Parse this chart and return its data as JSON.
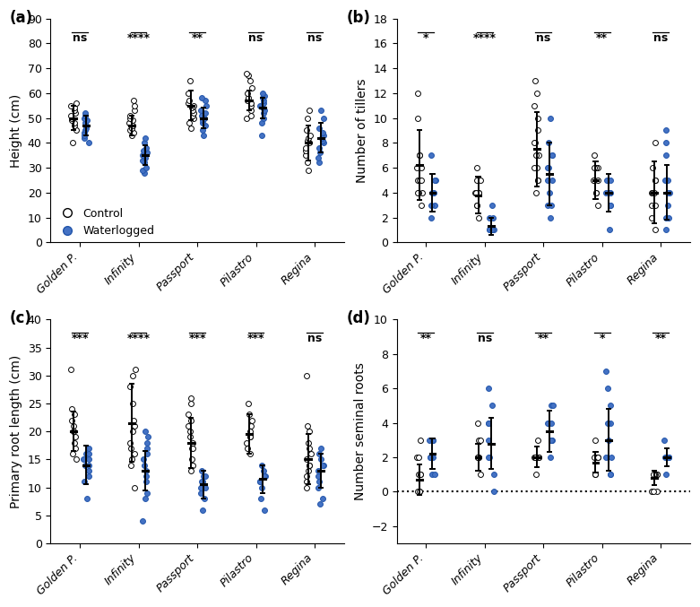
{
  "varieties": [
    "Golden P.",
    "Infinity",
    "Passport",
    "Pilastro",
    "Regina"
  ],
  "panel_labels": [
    "(a)",
    "(b)",
    "(c)",
    "(d)"
  ],
  "panel_a": {
    "ylabel": "Height (cm)",
    "ylim": [
      0,
      90
    ],
    "yticks": [
      0,
      10,
      20,
      30,
      40,
      50,
      60,
      70,
      80,
      90
    ],
    "sig": [
      "ns",
      "****",
      "**",
      "ns",
      "ns"
    ],
    "control_mean": [
      50,
      47,
      55,
      57,
      40
    ],
    "control_sd": [
      5,
      4,
      6,
      4,
      7
    ],
    "water_mean": [
      47,
      35,
      50,
      54,
      42
    ],
    "water_sd": [
      4,
      4,
      4,
      4,
      6
    ],
    "control_data": [
      [
        40,
        45,
        47,
        48,
        49,
        50,
        51,
        52,
        53,
        54,
        55,
        56
      ],
      [
        43,
        44,
        45,
        46,
        47,
        48,
        49,
        50,
        51,
        53,
        55,
        57
      ],
      [
        46,
        48,
        50,
        51,
        52,
        53,
        54,
        55,
        56,
        57,
        60,
        65
      ],
      [
        50,
        51,
        53,
        55,
        56,
        57,
        58,
        60,
        62,
        65,
        67,
        68
      ],
      [
        29,
        32,
        35,
        37,
        38,
        40,
        41,
        42,
        43,
        45,
        50,
        53
      ]
    ],
    "water_data": [
      [
        40,
        42,
        43,
        44,
        45,
        46,
        47,
        48,
        49,
        50,
        51,
        52
      ],
      [
        28,
        29,
        30,
        32,
        33,
        34,
        35,
        36,
        37,
        38,
        40,
        42
      ],
      [
        43,
        45,
        47,
        48,
        49,
        50,
        51,
        52,
        53,
        55,
        57,
        58
      ],
      [
        43,
        48,
        50,
        52,
        53,
        54,
        55,
        56,
        57,
        58,
        59,
        60
      ],
      [
        32,
        34,
        36,
        38,
        40,
        41,
        42,
        43,
        44,
        46,
        50,
        53
      ]
    ]
  },
  "panel_b": {
    "ylabel": "Number of tillers",
    "ylim": [
      0,
      18
    ],
    "yticks": [
      0,
      2,
      4,
      6,
      8,
      10,
      12,
      14,
      16,
      18
    ],
    "sig": [
      "*",
      "****",
      "ns",
      "**",
      "ns"
    ],
    "control_mean": [
      6.2,
      3.8,
      7.5,
      5.0,
      4.0
    ],
    "control_sd": [
      2.8,
      1.5,
      3.0,
      1.5,
      2.5
    ],
    "water_mean": [
      4.0,
      1.3,
      5.5,
      4.0,
      4.0
    ],
    "water_sd": [
      1.5,
      0.7,
      2.5,
      1.5,
      2.2
    ],
    "control_data": [
      [
        3,
        4,
        4,
        4,
        5,
        5,
        5,
        6,
        6,
        7,
        7,
        10,
        12
      ],
      [
        2,
        3,
        3,
        4,
        4,
        4,
        4,
        5,
        5,
        6
      ],
      [
        4,
        5,
        5,
        6,
        6,
        7,
        7,
        8,
        8,
        9,
        10,
        11,
        12,
        13
      ],
      [
        3,
        4,
        4,
        5,
        5,
        5,
        6,
        6,
        6,
        7
      ],
      [
        1,
        2,
        3,
        3,
        4,
        4,
        4,
        5,
        5,
        6,
        8
      ]
    ],
    "water_data": [
      [
        2,
        3,
        3,
        4,
        4,
        4,
        5,
        5,
        7
      ],
      [
        1,
        1,
        1,
        1,
        1,
        2,
        2,
        3
      ],
      [
        2,
        3,
        3,
        4,
        5,
        5,
        6,
        6,
        7,
        7,
        8,
        10
      ],
      [
        1,
        3,
        3,
        4,
        4,
        4,
        5,
        5
      ],
      [
        1,
        2,
        2,
        3,
        4,
        4,
        5,
        5,
        7,
        8,
        9
      ]
    ]
  },
  "panel_c": {
    "ylabel": "Primary root length (cm)",
    "ylim": [
      0,
      40
    ],
    "yticks": [
      0,
      5,
      10,
      15,
      20,
      25,
      30,
      35,
      40
    ],
    "sig": [
      "***",
      "****",
      "***",
      "***",
      "ns"
    ],
    "control_mean": [
      20.0,
      21.5,
      18.0,
      19.5,
      15.0
    ],
    "control_sd": [
      3.5,
      7.0,
      4.5,
      3.5,
      4.5
    ],
    "water_mean": [
      14.0,
      13.0,
      10.5,
      11.5,
      13.0
    ],
    "water_sd": [
      3.5,
      3.5,
      2.5,
      2.5,
      3.0
    ],
    "control_data": [
      [
        15,
        16,
        17,
        18,
        19,
        20,
        20,
        21,
        22,
        23,
        24,
        31
      ],
      [
        10,
        14,
        15,
        16,
        17,
        18,
        20,
        21,
        22,
        25,
        28,
        30,
        31
      ],
      [
        13,
        14,
        15,
        17,
        17,
        18,
        19,
        20,
        21,
        22,
        23,
        25,
        26
      ],
      [
        16,
        17,
        18,
        19,
        19,
        20,
        21,
        22,
        23,
        25
      ],
      [
        10,
        11,
        12,
        13,
        14,
        14,
        15,
        16,
        17,
        18,
        20,
        21,
        30
      ]
    ],
    "water_data": [
      [
        8,
        11,
        12,
        13,
        14,
        14,
        15,
        15,
        16,
        16,
        17
      ],
      [
        4,
        8,
        9,
        11,
        12,
        13,
        14,
        15,
        16,
        17,
        18,
        19,
        20
      ],
      [
        6,
        8,
        9,
        10,
        10,
        11,
        11,
        12,
        12,
        13
      ],
      [
        6,
        8,
        10,
        11,
        11,
        12,
        12,
        13,
        14
      ],
      [
        7,
        8,
        10,
        11,
        12,
        13,
        14,
        14,
        15,
        16,
        17
      ]
    ]
  },
  "panel_d": {
    "ylabel": "Number seminal roots",
    "ylim": [
      -3,
      10
    ],
    "yticks": [
      -2,
      0,
      2,
      4,
      6,
      8,
      10
    ],
    "sig": [
      "**",
      "ns",
      "**",
      "*",
      "**"
    ],
    "control_mean": [
      0.7,
      2.0,
      2.0,
      1.7,
      0.8
    ],
    "control_sd": [
      0.9,
      0.8,
      0.6,
      0.6,
      0.4
    ],
    "water_mean": [
      2.2,
      2.8,
      3.5,
      3.0,
      2.0
    ],
    "water_sd": [
      0.9,
      1.5,
      1.2,
      1.8,
      0.5
    ],
    "control_data": [
      [
        0,
        0,
        0,
        1,
        1,
        1,
        2,
        2,
        3
      ],
      [
        1,
        2,
        2,
        2,
        2,
        3,
        3,
        4
      ],
      [
        1,
        2,
        2,
        2,
        2,
        2,
        3
      ],
      [
        1,
        1,
        2,
        2,
        2,
        2,
        3
      ],
      [
        0,
        0,
        0,
        1,
        1,
        1,
        1,
        1,
        1
      ]
    ],
    "water_data": [
      [
        1,
        1,
        2,
        2,
        2,
        3,
        3,
        3
      ],
      [
        0,
        1,
        2,
        2,
        3,
        4,
        4,
        5,
        6
      ],
      [
        2,
        3,
        3,
        3,
        4,
        4,
        4,
        5,
        5
      ],
      [
        1,
        1,
        2,
        2,
        3,
        4,
        4,
        5,
        6,
        7
      ],
      [
        1,
        2,
        2,
        2,
        2,
        2,
        2,
        3
      ]
    ]
  },
  "control_color": "#ffffff",
  "control_edge": "#000000",
  "water_color": "#4472c4",
  "water_edge": "#2255aa",
  "jitter_amount": 0.1
}
